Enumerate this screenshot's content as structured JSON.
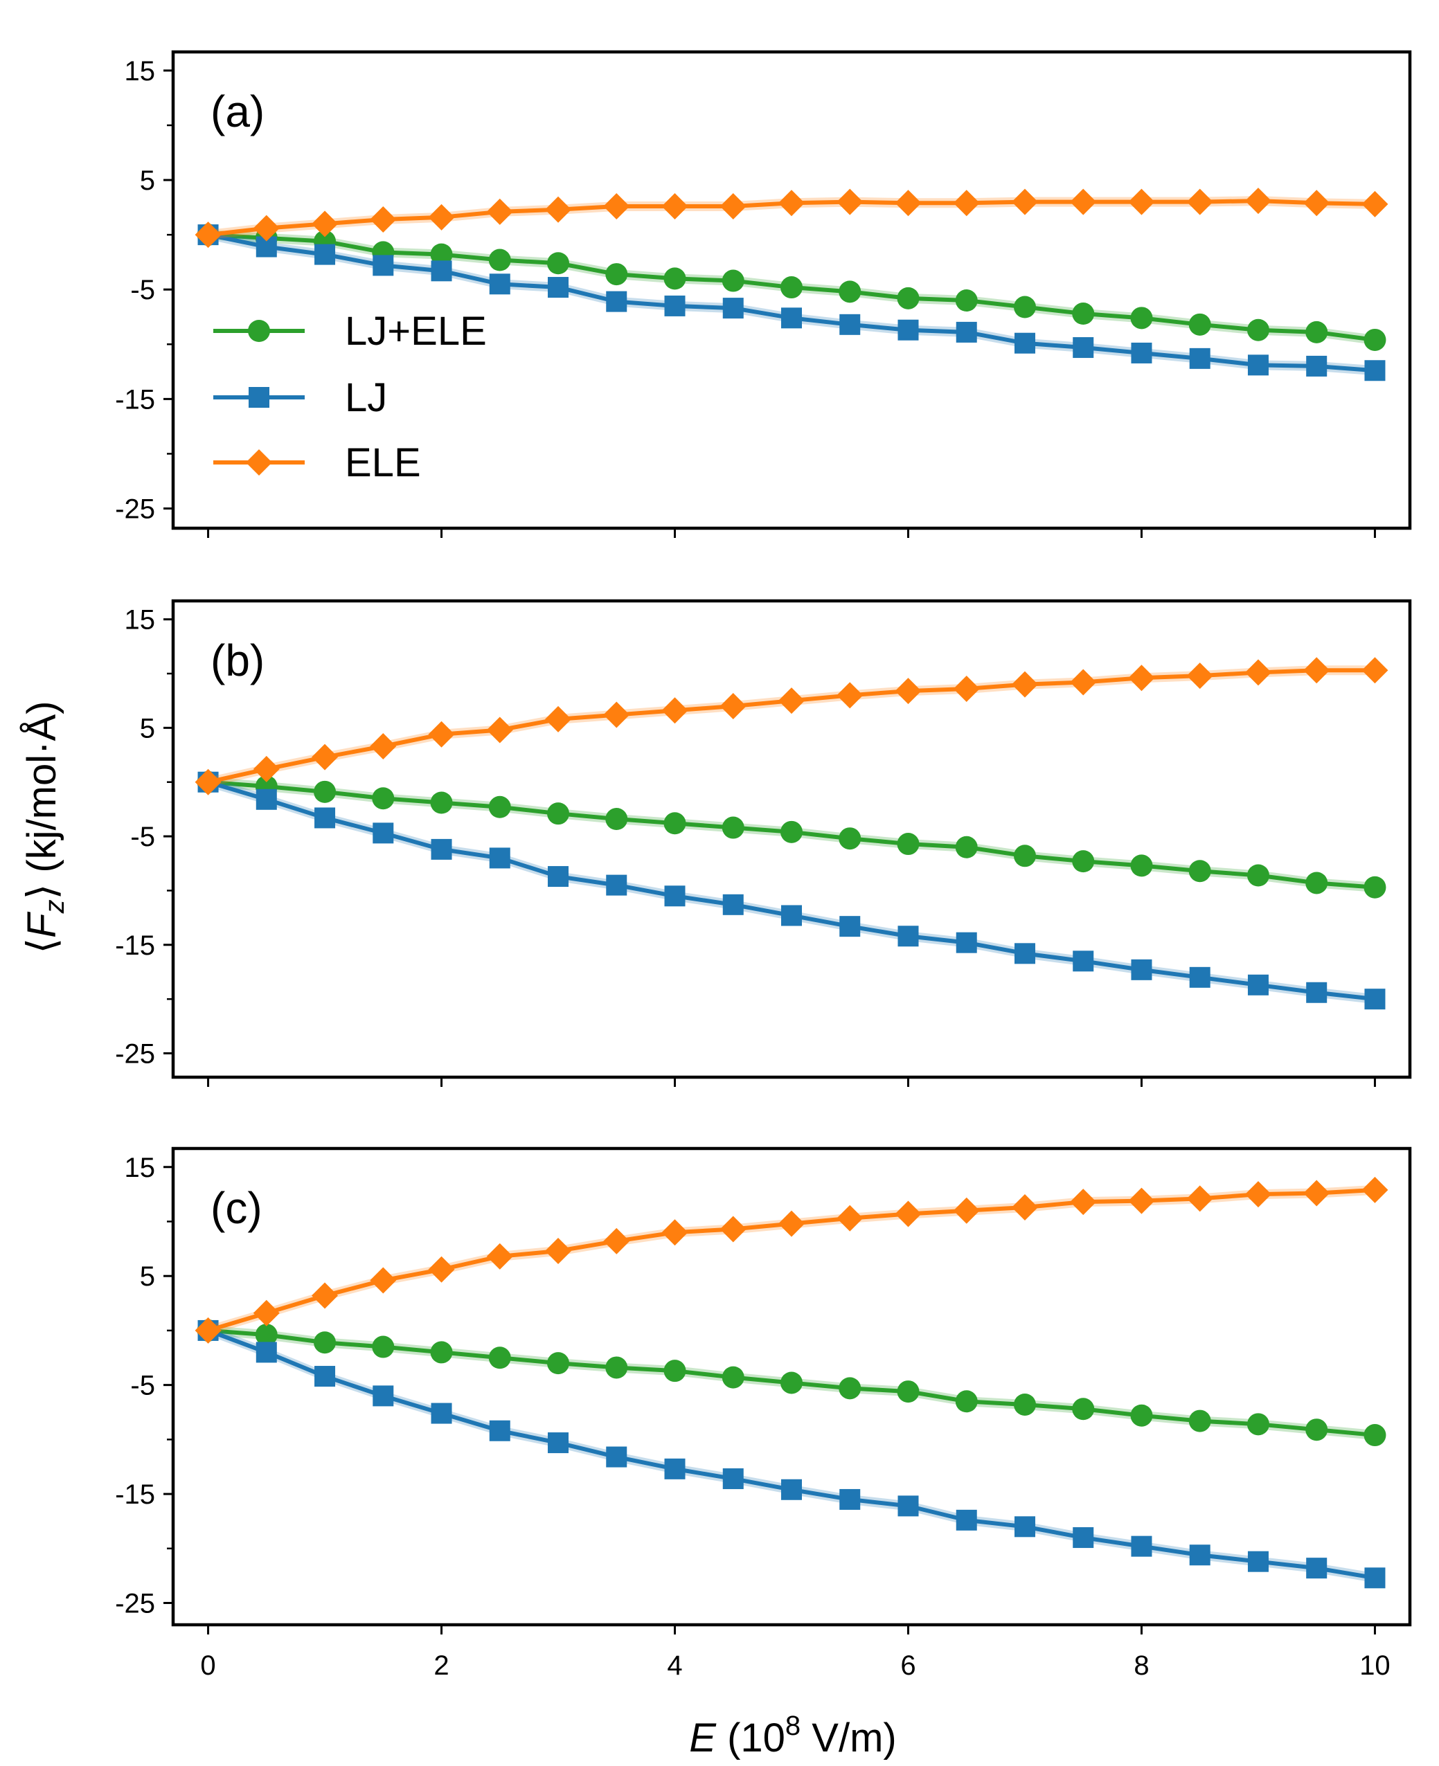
{
  "colors": {
    "LJ+ELE": "#2ca02c",
    "LJ": "#1f77b4",
    "ELE": "#ff7f0e"
  },
  "legend": [
    {
      "name": "LJ+ELE",
      "marker": "circle"
    },
    {
      "name": "LJ",
      "marker": "square"
    },
    {
      "name": "ELE",
      "marker": "diamond"
    }
  ],
  "axis_labels": {
    "x": "E (10^8 V/m)",
    "y": "⟨Fz⟩ (kj/mol·Å)"
  },
  "chart_data": [
    {
      "type": "line",
      "panel": "(a)",
      "xlabel": "E (10^8 V/m)",
      "ylabel": "⟨Fz⟩ (kj/mol·Å)",
      "xlim": [
        -0.3,
        10.3
      ],
      "ylim": [
        -26.8,
        16.7
      ],
      "yticks": [
        15,
        5,
        -5,
        -15,
        -25
      ],
      "xticks": [
        0,
        2,
        4,
        6,
        8,
        10
      ],
      "x": [
        0,
        0.5,
        1,
        1.5,
        2,
        2.5,
        3,
        3.5,
        4,
        4.5,
        5,
        5.5,
        6,
        6.5,
        7,
        7.5,
        8,
        8.5,
        9,
        9.5,
        10
      ],
      "series": [
        {
          "name": "LJ+ELE",
          "values": [
            0,
            -0.3,
            -0.6,
            -1.6,
            -1.8,
            -2.3,
            -2.6,
            -3.6,
            -4.0,
            -4.2,
            -4.8,
            -5.2,
            -5.8,
            -6.0,
            -6.6,
            -7.2,
            -7.6,
            -8.2,
            -8.7,
            -8.9,
            -9.6
          ]
        },
        {
          "name": "LJ",
          "values": [
            0,
            -1.1,
            -1.8,
            -2.8,
            -3.3,
            -4.5,
            -4.8,
            -6.1,
            -6.5,
            -6.7,
            -7.6,
            -8.2,
            -8.7,
            -8.9,
            -9.9,
            -10.3,
            -10.8,
            -11.3,
            -11.9,
            -12.0,
            -12.4
          ]
        },
        {
          "name": "ELE",
          "values": [
            0,
            0.6,
            1.0,
            1.4,
            1.6,
            2.1,
            2.3,
            2.6,
            2.6,
            2.6,
            2.9,
            3.0,
            2.9,
            2.9,
            3.0,
            3.0,
            3.0,
            3.0,
            3.1,
            2.9,
            2.8
          ]
        }
      ]
    },
    {
      "type": "line",
      "panel": "(b)",
      "xlabel": "E (10^8 V/m)",
      "ylabel": "⟨Fz⟩ (kj/mol·Å)",
      "xlim": [
        -0.3,
        10.3
      ],
      "ylim": [
        -27.2,
        16.7
      ],
      "yticks": [
        15,
        5,
        -5,
        -15,
        -25
      ],
      "xticks": [
        0,
        2,
        4,
        6,
        8,
        10
      ],
      "x": [
        0,
        0.5,
        1,
        1.5,
        2,
        2.5,
        3,
        3.5,
        4,
        4.5,
        5,
        5.5,
        6,
        6.5,
        7,
        7.5,
        8,
        8.5,
        9,
        9.5,
        10
      ],
      "series": [
        {
          "name": "LJ+ELE",
          "values": [
            0,
            -0.4,
            -0.9,
            -1.5,
            -1.9,
            -2.3,
            -2.9,
            -3.4,
            -3.8,
            -4.2,
            -4.6,
            -5.2,
            -5.7,
            -6.0,
            -6.8,
            -7.3,
            -7.7,
            -8.2,
            -8.6,
            -9.3,
            -9.7
          ]
        },
        {
          "name": "LJ",
          "values": [
            0,
            -1.6,
            -3.3,
            -4.7,
            -6.2,
            -7.0,
            -8.7,
            -9.5,
            -10.5,
            -11.3,
            -12.3,
            -13.3,
            -14.2,
            -14.8,
            -15.8,
            -16.5,
            -17.3,
            -18.0,
            -18.7,
            -19.4,
            -20.0
          ]
        },
        {
          "name": "ELE",
          "values": [
            0,
            1.2,
            2.3,
            3.3,
            4.4,
            4.8,
            5.8,
            6.2,
            6.6,
            7.0,
            7.5,
            8.0,
            8.4,
            8.6,
            9.0,
            9.2,
            9.6,
            9.8,
            10.1,
            10.3,
            10.3
          ]
        }
      ]
    },
    {
      "type": "line",
      "panel": "(c)",
      "xlabel": "E (10^8 V/m)",
      "ylabel": "⟨Fz⟩ (kj/mol·Å)",
      "xlim": [
        -0.3,
        10.3
      ],
      "ylim": [
        -27.0,
        16.7
      ],
      "yticks": [
        15,
        5,
        -5,
        -15,
        -25
      ],
      "xticks": [
        0,
        2,
        4,
        6,
        8,
        10
      ],
      "x": [
        0,
        0.5,
        1,
        1.5,
        2,
        2.5,
        3,
        3.5,
        4,
        4.5,
        5,
        5.5,
        6,
        6.5,
        7,
        7.5,
        8,
        8.5,
        9,
        9.5,
        10
      ],
      "series": [
        {
          "name": "LJ+ELE",
          "values": [
            0,
            -0.4,
            -1.1,
            -1.5,
            -2.0,
            -2.5,
            -3.0,
            -3.4,
            -3.7,
            -4.3,
            -4.8,
            -5.3,
            -5.6,
            -6.5,
            -6.8,
            -7.2,
            -7.8,
            -8.3,
            -8.6,
            -9.1,
            -9.6
          ]
        },
        {
          "name": "LJ",
          "values": [
            0,
            -2.0,
            -4.2,
            -6.0,
            -7.6,
            -9.2,
            -10.3,
            -11.6,
            -12.7,
            -13.6,
            -14.6,
            -15.5,
            -16.1,
            -17.4,
            -18.0,
            -19.0,
            -19.8,
            -20.6,
            -21.2,
            -21.8,
            -22.7
          ]
        },
        {
          "name": "ELE",
          "values": [
            0,
            1.6,
            3.2,
            4.6,
            5.6,
            6.8,
            7.3,
            8.2,
            9.0,
            9.3,
            9.8,
            10.3,
            10.7,
            11.0,
            11.3,
            11.8,
            11.9,
            12.1,
            12.5,
            12.6,
            12.9
          ]
        }
      ]
    }
  ]
}
